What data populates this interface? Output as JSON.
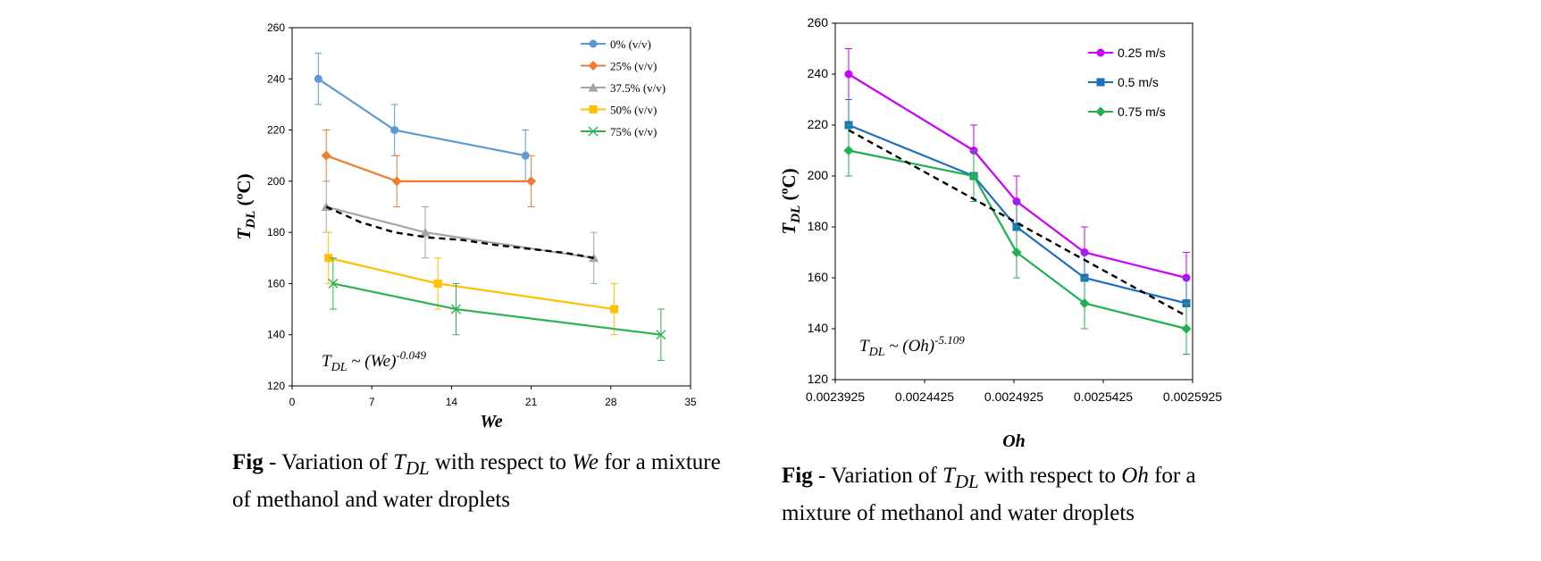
{
  "captions": {
    "left": {
      "fig": "Fig",
      "text_before": " - Variation of ",
      "var": "T",
      "sub": "DL",
      "text_mid": " with respect to ",
      "var2": "We",
      "text_after": " for a mixture of methanol and water droplets"
    },
    "right": {
      "fig": "Fig",
      "text_before": " - Variation of ",
      "var": "T",
      "sub": "DL",
      "text_mid": " with respect to ",
      "var2": "Oh",
      "text_after": " for a mixture of methanol and water droplets"
    }
  },
  "chart_data": [
    {
      "id": "left",
      "type": "line",
      "xlabel": "We",
      "ylabel_main": "T",
      "ylabel_sub": "DL",
      "ylabel_unit": "(ºC)",
      "xlim": [
        0,
        35
      ],
      "ylim": [
        120,
        260
      ],
      "xticks": [
        0,
        7,
        14,
        21,
        28,
        35
      ],
      "yticks": [
        120,
        140,
        160,
        180,
        200,
        220,
        240,
        260
      ],
      "legend_position": "top-right",
      "annotation": {
        "main": "T",
        "sub": "DL",
        "mid": " ~ (We)",
        "sup": "-0.049"
      },
      "series": [
        {
          "name": "0% (v/v)",
          "color": "#5b9bd5",
          "marker": "circle",
          "x": [
            2.3,
            9,
            20.5
          ],
          "y": [
            240,
            220,
            210
          ],
          "err": [
            10,
            10,
            10
          ]
        },
        {
          "name": "25% (v/v)",
          "color": "#ed7d31",
          "marker": "diamond",
          "x": [
            3,
            9.2,
            21
          ],
          "y": [
            210,
            200,
            200
          ],
          "err": [
            10,
            10,
            10
          ]
        },
        {
          "name": "37.5% (v/v)",
          "color": "#a5a5a5",
          "marker": "triangle",
          "x": [
            3,
            11.7,
            26.5
          ],
          "y": [
            190,
            180,
            170
          ],
          "err": [
            10,
            10,
            10
          ]
        },
        {
          "name": "50%  (v/v)",
          "color": "#ffc000",
          "marker": "square",
          "x": [
            3.2,
            12.8,
            28.3
          ],
          "y": [
            170,
            160,
            150
          ],
          "err": [
            10,
            10,
            10
          ]
        },
        {
          "name": "75%  (v/v)",
          "color": "#2eb352",
          "marker": "x",
          "x": [
            3.6,
            14.4,
            32.4
          ],
          "y": [
            160,
            150,
            140
          ],
          "err": [
            10,
            10,
            10
          ]
        }
      ],
      "fit": {
        "x": [
          3,
          6,
          9,
          12,
          15,
          18,
          21,
          24,
          26.5
        ],
        "y": [
          190,
          184,
          180,
          178,
          177,
          175,
          173.5,
          172,
          170
        ]
      }
    },
    {
      "id": "right",
      "type": "line",
      "xlabel": "Oh",
      "ylabel_main": "T",
      "ylabel_sub": "DL",
      "ylabel_unit": "(ºC)",
      "xlim": [
        0.0023925,
        0.0025925
      ],
      "ylim": [
        120,
        260
      ],
      "xtick_labels": [
        "0.0023925",
        "0.0024425",
        "0.0024925",
        "0.0025425",
        "0.0025925"
      ],
      "xticks": [
        0.0023925,
        0.0024425,
        0.0024925,
        0.0025425,
        0.0025925
      ],
      "yticks": [
        120,
        140,
        160,
        180,
        200,
        220,
        240,
        260
      ],
      "legend_position": "top-right",
      "annotation": {
        "main": "T",
        "sub": "DL",
        "mid": " ~ (Oh)",
        "sup": "-5.109"
      },
      "series": [
        {
          "name": "0.25 m/s",
          "color": "#cc00ff",
          "marker": "circle",
          "x": [
            0.0024,
            0.00247,
            0.002494,
            0.002532,
            0.002589
          ],
          "y": [
            240,
            210,
            190,
            170,
            160
          ],
          "err": [
            10,
            10,
            10,
            10,
            10
          ]
        },
        {
          "name": "0.5 m/s",
          "color": "#1f6fc0",
          "marker": "square",
          "x": [
            0.0024,
            0.00247,
            0.002494,
            0.002532,
            0.002589
          ],
          "y": [
            220,
            200,
            180,
            160,
            150
          ],
          "err": [
            10,
            10,
            10,
            10,
            10
          ]
        },
        {
          "name": "0.75 m/s",
          "color": "#1fb050",
          "marker": "diamond",
          "x": [
            0.0024,
            0.00247,
            0.002494,
            0.002532,
            0.002589
          ],
          "y": [
            210,
            200,
            170,
            150,
            140
          ],
          "err": [
            10,
            10,
            10,
            10,
            10
          ]
        }
      ],
      "fit": {
        "x": [
          0.0024,
          0.002589
        ],
        "y": [
          218,
          145
        ]
      }
    }
  ]
}
